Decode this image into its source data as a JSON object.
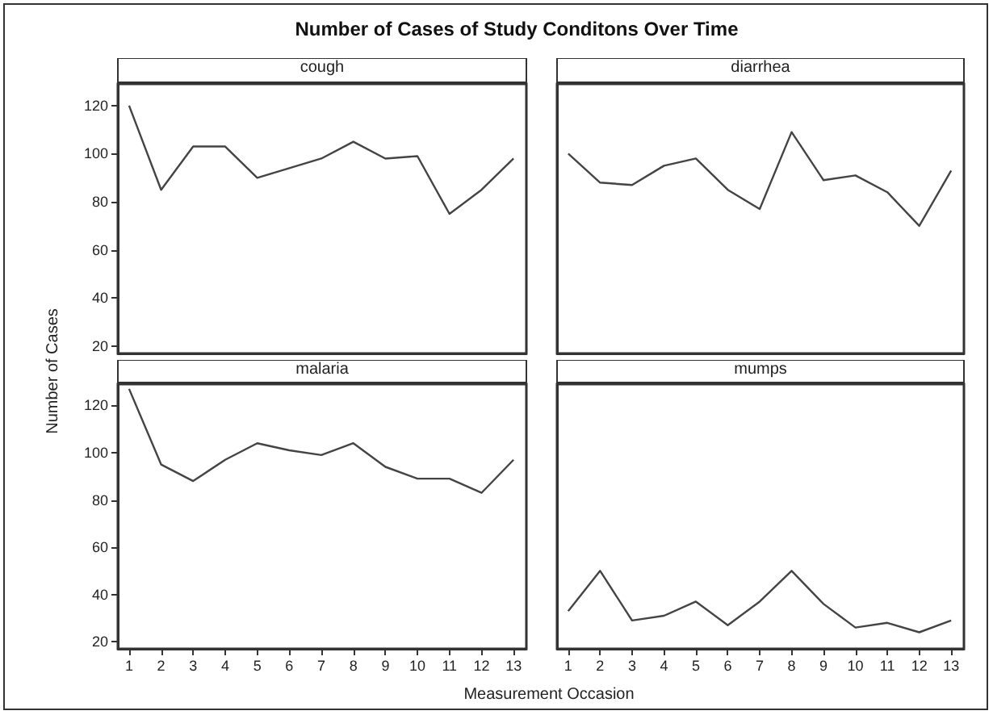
{
  "chart_data": [
    {
      "type": "line",
      "title": "cough",
      "annotations": [
        "Number of Cases of Study Conditons Over Time"
      ],
      "ylabel": "Number of Cases",
      "x": [
        1,
        2,
        3,
        4,
        5,
        6,
        7,
        8,
        9,
        10,
        11,
        12,
        13
      ],
      "series": [
        {
          "color": "#444444",
          "values": [
            120,
            85,
            103,
            103,
            90,
            94,
            98,
            105,
            98,
            99,
            75,
            85,
            98
          ]
        }
      ],
      "xlim": [
        0.65,
        13.4
      ],
      "xticks": [
        1,
        2,
        3,
        4,
        5,
        6,
        7,
        8,
        9,
        10,
        11,
        12,
        13
      ],
      "ylim": [
        17,
        129
      ],
      "yticks": [
        20,
        40,
        60,
        80,
        100,
        120
      ],
      "grid": false,
      "marker": "none",
      "line_style": "solid",
      "tick_labels": "y"
    },
    {
      "type": "line",
      "title": "diarrhea",
      "x": [
        1,
        2,
        3,
        4,
        5,
        6,
        7,
        8,
        9,
        10,
        11,
        12,
        13
      ],
      "series": [
        {
          "color": "#444444",
          "values": [
            100,
            88,
            87,
            95,
            98,
            85,
            77,
            109,
            89,
            91,
            84,
            70,
            93
          ]
        }
      ],
      "xlim": [
        0.65,
        13.4
      ],
      "xticks": [
        1,
        2,
        3,
        4,
        5,
        6,
        7,
        8,
        9,
        10,
        11,
        12,
        13
      ],
      "ylim": [
        17,
        129
      ],
      "yticks": [
        20,
        40,
        60,
        80,
        100,
        120
      ],
      "grid": false,
      "marker": "none",
      "line_style": "solid",
      "tick_labels": false
    },
    {
      "type": "line",
      "title": "malaria",
      "xlabel": "Measurement Occasion",
      "x": [
        1,
        2,
        3,
        4,
        5,
        6,
        7,
        8,
        9,
        10,
        11,
        12,
        13
      ],
      "series": [
        {
          "color": "#444444",
          "values": [
            127,
            95,
            88,
            97,
            104,
            101,
            99,
            104,
            94,
            89,
            89,
            83,
            97
          ]
        }
      ],
      "xlim": [
        0.65,
        13.4
      ],
      "xticks": [
        1,
        2,
        3,
        4,
        5,
        6,
        7,
        8,
        9,
        10,
        11,
        12,
        13
      ],
      "ylim": [
        17,
        129
      ],
      "yticks": [
        20,
        40,
        60,
        80,
        100,
        120
      ],
      "grid": false,
      "marker": "none",
      "line_style": "solid"
    },
    {
      "type": "line",
      "title": "mumps",
      "x": [
        1,
        2,
        3,
        4,
        5,
        6,
        7,
        8,
        9,
        10,
        11,
        12,
        13
      ],
      "series": [
        {
          "color": "#444444",
          "values": [
            33,
            50,
            29,
            31,
            37,
            27,
            37,
            50,
            36,
            26,
            28,
            24,
            29
          ]
        }
      ],
      "xlim": [
        0.65,
        13.4
      ],
      "xticks": [
        1,
        2,
        3,
        4,
        5,
        6,
        7,
        8,
        9,
        10,
        11,
        12,
        13
      ],
      "ylim": [
        17,
        129
      ],
      "yticks": [
        20,
        40,
        60,
        80,
        100,
        120
      ],
      "grid": false,
      "marker": "none",
      "line_style": "solid",
      "tick_labels": "x"
    }
  ]
}
